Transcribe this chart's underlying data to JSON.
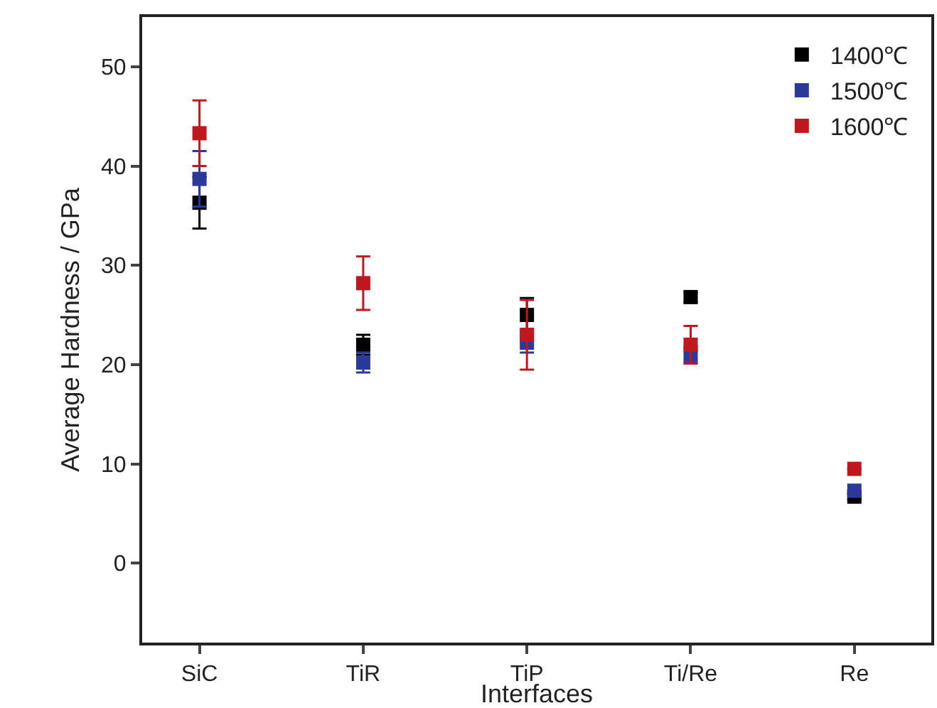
{
  "chart_data": {
    "type": "scatter",
    "xlabel": "Interfaces",
    "ylabel": "Average Hardness / GPa",
    "categories": [
      "SiC",
      "TiR",
      "TiP",
      "Ti/Re",
      "Re"
    ],
    "series": [
      {
        "name": "1400℃",
        "color": "#000000",
        "values": [
          36.3,
          22,
          25,
          26.8,
          6.7
        ],
        "errors": [
          2.6,
          1,
          1.7,
          0.5,
          0.3
        ]
      },
      {
        "name": "1500℃",
        "color": "#2b3a9a",
        "values": [
          38.7,
          20.2,
          22.2,
          21,
          7.3
        ],
        "errors": [
          2.8,
          1,
          1,
          0.8,
          null
        ]
      },
      {
        "name": "1600℃",
        "color": "#c0181f",
        "values": [
          43.3,
          28.2,
          23,
          22,
          9.5
        ],
        "errors": [
          3.3,
          2.7,
          3.5,
          1.9,
          null
        ]
      }
    ],
    "ylim": [
      -8,
      55
    ],
    "yticks": [
      0,
      10,
      20,
      30,
      40,
      50
    ],
    "grid": false,
    "legend": "top right",
    "marker": "square"
  }
}
